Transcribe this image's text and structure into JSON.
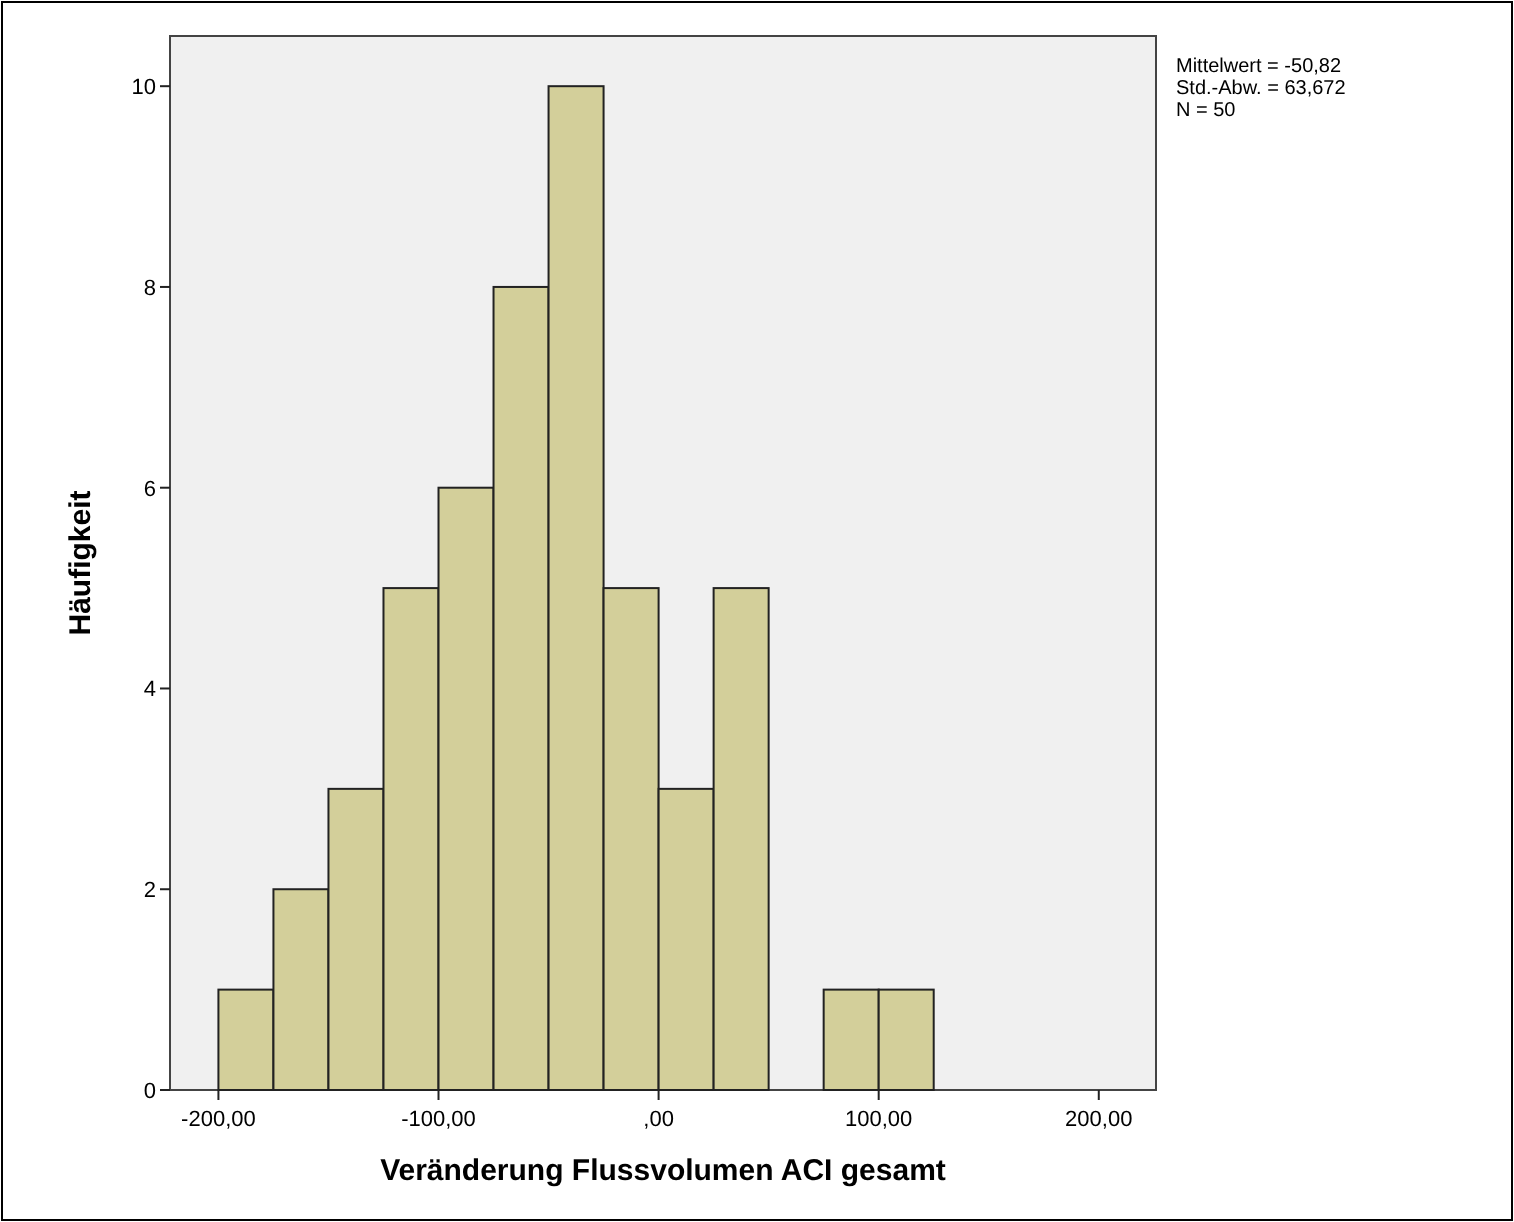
{
  "chart_data": {
    "type": "histogram",
    "xlabel": "Veränderung Flussvolumen ACI gesamt",
    "ylabel": "Häufigkeit",
    "bins": [
      -200,
      -175,
      -150,
      -125,
      -100,
      -75,
      -50,
      -25,
      0,
      25,
      50,
      75,
      100,
      125
    ],
    "values": [
      1,
      2,
      3,
      5,
      6,
      8,
      10,
      5,
      3,
      5,
      0,
      1,
      1
    ],
    "color": "#d3cf9a",
    "xlim": [
      -222,
      226
    ],
    "ylim": [
      0,
      10.5
    ],
    "xticks": [
      {
        "value": -200,
        "label": "-200,00"
      },
      {
        "value": -100,
        "label": "-100,00"
      },
      {
        "value": 0,
        "label": ",00"
      },
      {
        "value": 100,
        "label": "100,00"
      },
      {
        "value": 200,
        "label": "200,00"
      }
    ],
    "yticks": [
      0,
      2,
      4,
      6,
      8,
      10
    ],
    "annotations": [
      "Mittelwert = -50,82",
      "Std.-Abw. = 63,672",
      "N = 50"
    ]
  }
}
